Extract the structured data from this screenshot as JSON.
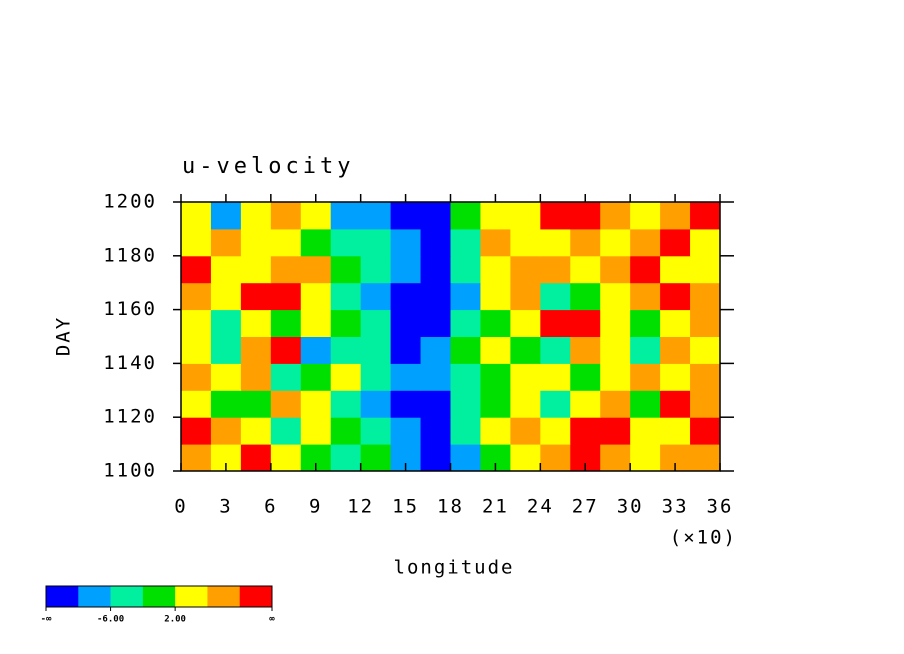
{
  "chart_data": {
    "type": "contour",
    "title": "u-velocity",
    "xlabel": "longitude",
    "ylabel": "DAY",
    "x_multiplier": "(×10)",
    "xlim": [
      0,
      36
    ],
    "xticks": [
      0,
      3,
      6,
      9,
      12,
      15,
      18,
      21,
      24,
      27,
      30,
      33,
      36
    ],
    "ylim": [
      1100,
      1200
    ],
    "yticks": [
      1100,
      1120,
      1140,
      1160,
      1180,
      1200
    ],
    "grid_x": [
      1,
      3,
      5,
      7,
      9,
      11,
      13,
      15,
      17,
      19,
      21,
      23,
      25,
      27,
      29,
      31,
      33,
      35
    ],
    "grid_y": [
      1105,
      1115,
      1125,
      1135,
      1145,
      1155,
      1165,
      1175,
      1185,
      1195
    ],
    "z": [
      [
        8,
        4,
        12,
        5,
        0,
        -4,
        -2,
        -8,
        -12,
        -8,
        0,
        4,
        6,
        12,
        8,
        4,
        6,
        9
      ],
      [
        12,
        6,
        2,
        -3,
        4,
        0,
        -4,
        -10,
        -12,
        -6,
        2,
        8,
        4,
        12,
        10,
        3,
        5,
        11
      ],
      [
        4,
        -2,
        0,
        6,
        3,
        -4,
        -8,
        -12,
        -11,
        -6,
        -1,
        3,
        -3,
        2,
        6,
        0,
        12,
        8
      ],
      [
        6,
        2,
        8,
        -4,
        -2,
        2,
        -6,
        -10,
        -8,
        -4,
        0,
        5,
        2,
        -2,
        4,
        8,
        3,
        6
      ],
      [
        2,
        -4,
        8,
        12,
        -8,
        -3,
        -6,
        -12,
        -9,
        -2,
        4,
        0,
        -4,
        6,
        2,
        -3,
        7,
        3
      ],
      [
        4,
        -6,
        2,
        -2,
        4,
        0,
        -6,
        -12,
        -14,
        -6,
        -2,
        3,
        12,
        13,
        5,
        -2,
        4,
        9
      ],
      [
        8,
        5,
        12,
        10,
        2,
        -4,
        -8,
        -13,
        -14,
        -8,
        2,
        6,
        -6,
        -2,
        4,
        8,
        12,
        6
      ],
      [
        10,
        3,
        4,
        7,
        6,
        0,
        -4,
        -8,
        -12,
        -5,
        4,
        8,
        6,
        2,
        8,
        10,
        4,
        5
      ],
      [
        4,
        8,
        2,
        3,
        -2,
        -5,
        -4,
        -10,
        -12,
        -4,
        6,
        3,
        4,
        9,
        2,
        6,
        11,
        3
      ],
      [
        3,
        -8,
        5,
        6,
        2,
        -10,
        -9,
        -12,
        -12,
        -2,
        2,
        5,
        10,
        11,
        7,
        3,
        6,
        12
      ]
    ],
    "colors": [
      "#0000ff",
      "#00a0ff",
      "#00f0a0",
      "#00e000",
      "#ffff00",
      "#ffa000",
      "#ff0000"
    ],
    "level_edges": [
      null,
      -10,
      -6,
      -2,
      2,
      6,
      10,
      null
    ],
    "edge_labels": [
      "-∞",
      null,
      "-6.00",
      null,
      "2.00",
      null,
      null,
      "∞"
    ]
  }
}
